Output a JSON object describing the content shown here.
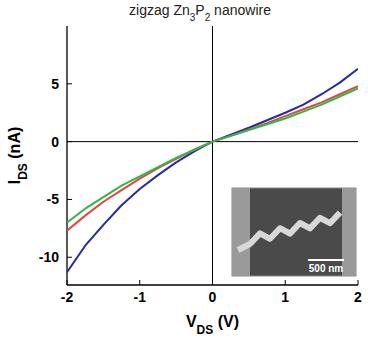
{
  "chart_data": {
    "type": "line",
    "title": "zigzag Zn3P2 nanowire",
    "x_label": "VDS (V)",
    "y_label": "IDS (nA)",
    "x": [
      -2,
      -1.75,
      -1.5,
      -1.25,
      -1,
      -0.75,
      -0.5,
      -0.25,
      0,
      0.25,
      0.5,
      0.75,
      1,
      1.25,
      1.5,
      1.75,
      2
    ],
    "series": [
      {
        "color": "#2a2aa0",
        "values": [
          -11.3,
          -9.0,
          -7.2,
          -5.5,
          -4.1,
          -2.9,
          -1.8,
          -0.85,
          0,
          0.6,
          1.2,
          1.85,
          2.5,
          3.2,
          4.1,
          5.1,
          6.3
        ]
      },
      {
        "color": "#e8453c",
        "values": [
          -7.7,
          -6.4,
          -5.2,
          -4.2,
          -3.2,
          -2.3,
          -1.5,
          -0.7,
          0,
          0.5,
          1.05,
          1.6,
          2.2,
          2.8,
          3.4,
          4.1,
          4.8
        ]
      },
      {
        "color": "#2db84a",
        "values": [
          -7.0,
          -5.8,
          -4.8,
          -3.8,
          -3.0,
          -2.2,
          -1.4,
          -0.7,
          0,
          0.5,
          1.0,
          1.5,
          2.0,
          2.6,
          3.2,
          3.9,
          4.6
        ]
      }
    ],
    "xlim": [
      -2,
      2
    ],
    "xticks": [
      -2,
      -1,
      0,
      1,
      2
    ],
    "ylim": [
      -12.4,
      10
    ],
    "yticks": [
      -10,
      -5,
      0,
      5
    ],
    "annotation": "500 nm"
  }
}
